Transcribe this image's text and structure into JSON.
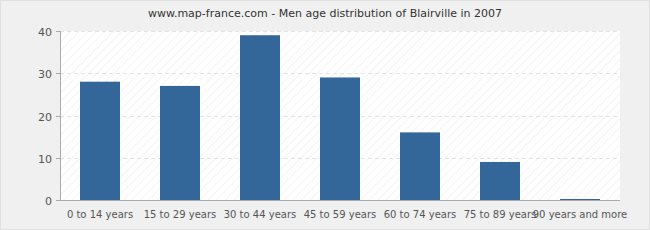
{
  "chart_data": {
    "type": "bar",
    "title": "www.map-france.com - Men age distribution of Blairville in 2007",
    "categories": [
      "0 to 14 years",
      "15 to 29 years",
      "30 to 44 years",
      "45 to 59 years",
      "60 to 74 years",
      "75 to 89 years",
      "90 years and more"
    ],
    "values": [
      28,
      27,
      39,
      29,
      16,
      9,
      0
    ],
    "color": "#336699",
    "ylim": [
      0,
      40
    ],
    "yticks": [
      0,
      10,
      20,
      30,
      40
    ],
    "grid": true
  }
}
